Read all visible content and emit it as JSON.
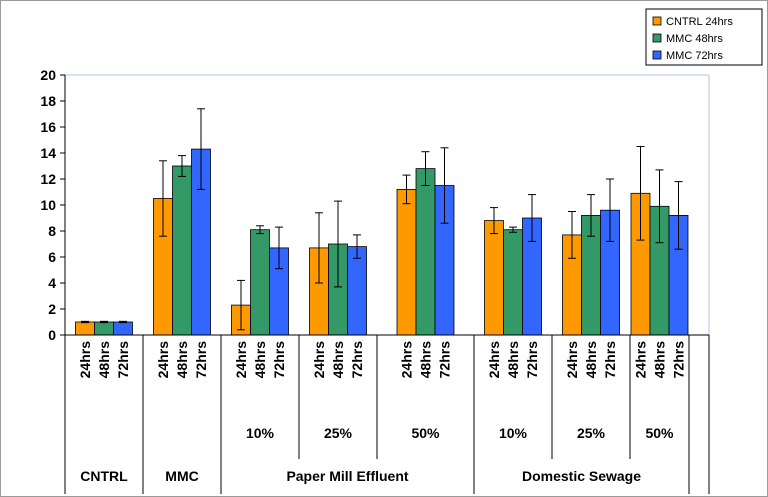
{
  "chart_data": {
    "type": "bar",
    "title": "",
    "xlabel": "",
    "ylabel": "",
    "ylim": [
      0,
      20
    ],
    "y_ticks": [
      0,
      2,
      4,
      6,
      8,
      10,
      12,
      14,
      16,
      18,
      20
    ],
    "grid": false,
    "legend_position": "top-right",
    "legend": [
      {
        "name": "CNTRL 24hrs",
        "color": "#FF9900"
      },
      {
        "name": "MMC 48hrs",
        "color": "#339966"
      },
      {
        "name": "MMC 72hrs",
        "color": "#3366FF"
      }
    ],
    "groups": [
      {
        "group": "CNTRL",
        "conc": "",
        "labels": [
          "24hrs",
          "48hrs",
          "72hrs"
        ],
        "values": [
          1.0,
          1.0,
          1.0
        ],
        "errors": [
          0.05,
          0.05,
          0.05
        ]
      },
      {
        "group": "MMC",
        "conc": "",
        "labels": [
          "24hrs",
          "48hrs",
          "72hrs"
        ],
        "values": [
          10.5,
          13.0,
          14.3
        ],
        "errors": [
          2.9,
          0.8,
          3.1
        ]
      },
      {
        "group": "Paper Mill Effluent",
        "conc": "10%",
        "labels": [
          "24hrs",
          "48hrs",
          "72hrs"
        ],
        "values": [
          2.3,
          8.1,
          6.7
        ],
        "errors": [
          1.9,
          0.3,
          1.6
        ]
      },
      {
        "group": "Paper Mill Effluent",
        "conc": "25%",
        "labels": [
          "24hrs",
          "48hrs",
          "72hrs"
        ],
        "values": [
          6.7,
          7.0,
          6.8
        ],
        "errors": [
          2.7,
          3.3,
          0.9
        ]
      },
      {
        "group": "Paper Mill Effluent",
        "conc": "50%",
        "labels": [
          "24hrs",
          "48hrs",
          "72hrs"
        ],
        "values": [
          11.2,
          12.8,
          11.5
        ],
        "errors": [
          1.1,
          1.3,
          2.9
        ]
      },
      {
        "group": "Domestic Sewage",
        "conc": "10%",
        "labels": [
          "24hrs",
          "48hrs",
          "72hrs"
        ],
        "values": [
          8.8,
          8.1,
          9.0
        ],
        "errors": [
          1.0,
          0.2,
          1.8
        ]
      },
      {
        "group": "Domestic Sewage",
        "conc": "25%",
        "labels": [
          "24hrs",
          "48hrs",
          "72hrs"
        ],
        "values": [
          7.7,
          9.2,
          9.6
        ],
        "errors": [
          1.8,
          1.6,
          2.4
        ]
      },
      {
        "group": "Domestic Sewage",
        "conc": "50%",
        "labels": [
          "24hrs",
          "48hrs",
          "72hrs"
        ],
        "values": [
          10.9,
          9.9,
          9.2
        ],
        "errors": [
          3.6,
          2.8,
          2.6
        ]
      }
    ],
    "group_labels": [
      "CNTRL",
      "MMC",
      "Paper Mill Effluent",
      "Domestic Sewage"
    ]
  }
}
